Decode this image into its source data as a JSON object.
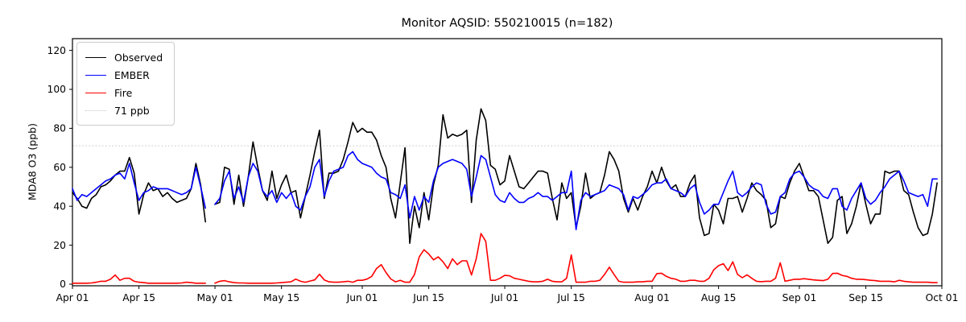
{
  "figure": {
    "title": "Monitor AQSID: 550210015 (n=182)",
    "ylabel": "MDA8 O3 (ppb)",
    "background": "#ffffff"
  },
  "legend": {
    "entries": [
      {
        "label": "Observed",
        "color": "#000000",
        "style": "solid"
      },
      {
        "label": "EMBER",
        "color": "#0000ff",
        "style": "solid"
      },
      {
        "label": "Fire",
        "color": "#ff0000",
        "style": "solid"
      },
      {
        "label": "71 ppb",
        "color": "#c9c9c9",
        "style": "dotted"
      }
    ],
    "position": "upper-left"
  },
  "chart_data": {
    "type": "line",
    "title": "Monitor AQSID: 550210015 (n=182)",
    "xlabel": "",
    "ylabel": "MDA8 O3 (ppb)",
    "grid": false,
    "legend_position": "upper-left",
    "ylim": [
      0,
      126
    ],
    "y_ticks": [
      0,
      20,
      40,
      60,
      80,
      100,
      120
    ],
    "x_start": "Apr 01",
    "x_end": "Oct 01",
    "n_days": 183,
    "missing_day_index": 29,
    "x_ticks": [
      {
        "label": "Apr 01",
        "day": 0
      },
      {
        "label": "Apr 15",
        "day": 14
      },
      {
        "label": "May 01",
        "day": 30
      },
      {
        "label": "May 15",
        "day": 44
      },
      {
        "label": "Jun 01",
        "day": 61
      },
      {
        "label": "Jun 15",
        "day": 75
      },
      {
        "label": "Jul 01",
        "day": 91
      },
      {
        "label": "Jul 15",
        "day": 105
      },
      {
        "label": "Aug 01",
        "day": 122
      },
      {
        "label": "Aug 15",
        "day": 136
      },
      {
        "label": "Sep 01",
        "day": 153
      },
      {
        "label": "Sep 15",
        "day": 167
      },
      {
        "label": "Oct 01",
        "day": 183
      }
    ],
    "threshold": {
      "value": 71,
      "label": "71 ppb",
      "color": "#d3d3d3",
      "style": "dotted"
    },
    "series": [
      {
        "name": "Observed",
        "color": "#000000",
        "values": [
          47,
          44,
          40,
          39,
          44,
          46,
          50,
          51,
          53,
          56,
          58,
          58,
          65,
          57,
          36,
          46,
          52,
          48,
          49,
          45,
          47,
          44,
          42,
          43,
          44,
          49,
          62,
          51,
          32,
          null,
          41,
          42,
          60,
          59,
          41,
          56,
          40,
          55,
          73,
          60,
          48,
          43,
          58,
          44,
          51,
          56,
          47,
          48,
          34,
          45,
          56,
          68,
          79,
          44,
          57,
          57,
          58,
          64,
          73,
          83,
          78,
          80,
          78,
          78,
          74,
          66,
          60,
          44,
          34,
          52,
          70,
          21,
          40,
          29,
          47,
          33,
          51,
          61,
          87,
          75,
          77,
          76,
          77,
          79,
          42,
          74,
          90,
          84,
          61,
          59,
          51,
          53,
          66,
          58,
          50,
          49,
          52,
          55,
          58,
          58,
          57,
          44,
          33,
          52,
          44,
          47,
          29,
          40,
          57,
          44,
          46,
          47,
          56,
          68,
          64,
          58,
          44,
          37,
          44,
          38,
          45,
          50,
          58,
          52,
          60,
          53,
          49,
          51,
          45,
          45,
          52,
          56,
          34,
          25,
          26,
          41,
          38,
          31,
          44,
          44,
          45,
          37,
          44,
          52,
          48,
          46,
          43,
          29,
          31,
          45,
          44,
          52,
          58,
          62,
          55,
          48,
          48,
          45,
          33,
          21,
          24,
          43,
          45,
          26,
          31,
          40,
          52,
          41,
          31,
          36,
          36,
          58,
          57,
          58,
          58,
          48,
          46,
          37,
          29,
          25,
          26,
          36,
          52
        ]
      },
      {
        "name": "EMBER",
        "color": "#0000ff",
        "values": [
          49,
          43,
          46,
          45,
          47,
          49,
          51,
          53,
          54,
          56,
          57,
          54,
          62,
          52,
          43,
          47,
          48,
          50,
          49,
          49,
          49,
          48,
          47,
          46,
          47,
          49,
          60,
          50,
          39,
          null,
          41,
          44,
          53,
          58,
          44,
          50,
          42,
          55,
          62,
          58,
          48,
          45,
          48,
          42,
          47,
          44,
          47,
          40,
          38,
          45,
          50,
          60,
          64,
          45,
          53,
          58,
          59,
          60,
          66,
          68,
          64,
          62,
          61,
          60,
          57,
          55,
          54,
          47,
          46,
          44,
          51,
          34,
          45,
          38,
          45,
          42,
          53,
          60,
          62,
          63,
          64,
          63,
          62,
          59,
          45,
          55,
          66,
          64,
          55,
          46,
          43,
          42,
          47,
          44,
          42,
          42,
          44,
          45,
          47,
          45,
          45,
          43,
          45,
          47,
          47,
          58,
          28,
          43,
          47,
          45,
          46,
          47,
          48,
          51,
          50,
          49,
          46,
          38,
          45,
          44,
          46,
          48,
          51,
          52,
          52,
          54,
          49,
          48,
          47,
          45,
          49,
          51,
          42,
          36,
          38,
          41,
          41,
          47,
          53,
          58,
          47,
          45,
          47,
          50,
          52,
          51,
          41,
          36,
          37,
          45,
          47,
          54,
          57,
          58,
          55,
          51,
          49,
          48,
          45,
          44,
          49,
          49,
          40,
          38,
          44,
          48,
          52,
          44,
          41,
          43,
          47,
          50,
          54,
          56,
          58,
          53,
          47,
          46,
          45,
          46,
          40,
          54,
          54
        ]
      },
      {
        "name": "Fire",
        "color": "#ff0000",
        "values": [
          0.5,
          0.5,
          0.5,
          0.5,
          0.6,
          1,
          1.5,
          1.5,
          2.5,
          4.7,
          2,
          3,
          3,
          1.5,
          1,
          0.8,
          0.5,
          0.5,
          0.5,
          0.5,
          0.5,
          0.5,
          0.5,
          0.6,
          1,
          0.8,
          0.5,
          0.5,
          0.5,
          null,
          0.5,
          1.5,
          1.8,
          1.2,
          0.8,
          0.6,
          0.6,
          0.5,
          0.5,
          0.5,
          0.5,
          0.5,
          0.5,
          0.6,
          0.8,
          1,
          1.2,
          2.6,
          1.5,
          1,
          1.6,
          2.2,
          5.1,
          2.2,
          1.2,
          1,
          1,
          1.2,
          1.5,
          1,
          2,
          2,
          2.6,
          4,
          8,
          10,
          6,
          2.7,
          1.2,
          2,
          1,
          1,
          5,
          14,
          17.7,
          15.5,
          12.5,
          14,
          11.5,
          8,
          13,
          10,
          12,
          12,
          4.7,
          13,
          26,
          22,
          2,
          2,
          3,
          4.5,
          4.3,
          3,
          2.5,
          2,
          1.5,
          1.2,
          1.2,
          1.5,
          2.5,
          1.5,
          1.2,
          1.2,
          3,
          15,
          1,
          1,
          1,
          1.5,
          1.5,
          2,
          5,
          8.7,
          5,
          1.5,
          1,
          1,
          1,
          1.2,
          1.2,
          1.5,
          1.5,
          5.4,
          5.6,
          4,
          3,
          2.5,
          1.5,
          1.5,
          2,
          2,
          1.5,
          1.5,
          3,
          7.4,
          9.5,
          10.5,
          7,
          11.5,
          5,
          3.3,
          4.8,
          3,
          1.5,
          1.3,
          1.5,
          1.5,
          3,
          11,
          1.5,
          2,
          2.5,
          2.5,
          2.8,
          2.5,
          2.2,
          2,
          1.8,
          2.5,
          5.5,
          5.6,
          4.5,
          4,
          3,
          2.5,
          2.5,
          2.3,
          2,
          1.8,
          1.5,
          1.5,
          1.5,
          1.2,
          2,
          1.5,
          1.2,
          1,
          1,
          1,
          1,
          0.8,
          0.8
        ]
      }
    ]
  }
}
